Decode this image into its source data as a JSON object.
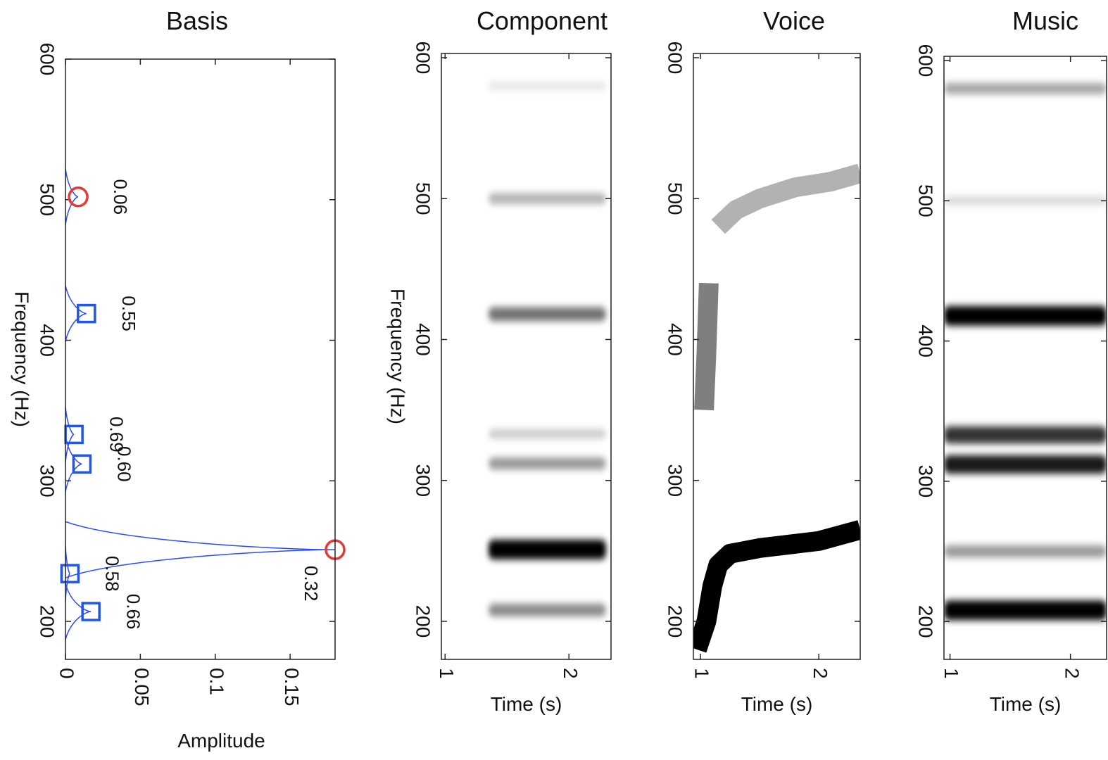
{
  "chart_data": [
    {
      "type": "scatter",
      "title": "Basis",
      "x_label": "Amplitude",
      "y_label": "Frequency (Hz)",
      "xlim": [
        0,
        0.18
      ],
      "ylim": [
        173,
        600
      ],
      "xticks": [
        0,
        0.05,
        0.1,
        0.15
      ],
      "yticks": [
        200,
        300,
        400,
        500,
        600
      ],
      "line_color": "#2a4bff",
      "series": [
        {
          "marker": "circle",
          "color": "#e53935",
          "x": [
            0.0085,
            0.18
          ],
          "y": [
            502,
            251
          ],
          "labels": [
            "0.06",
            "0.32"
          ]
        },
        {
          "marker": "square",
          "color": "#2255ee",
          "x": [
            0.014,
            0.0057,
            0.011,
            0.003,
            0.017
          ],
          "y": [
            419,
            333,
            312,
            234,
            207
          ],
          "labels": [
            "0.55",
            "0.69",
            "0.60",
            "0.58",
            "0.66"
          ]
        }
      ]
    },
    {
      "type": "spectrogram",
      "title": "Component",
      "x_label": "Time (s)",
      "y_label": "Frequency (Hz)",
      "xlim": [
        0.97,
        2.34
      ],
      "ylim": [
        173,
        603
      ],
      "xticks": [
        1,
        2
      ],
      "yticks": [
        200,
        300,
        400,
        500,
        600
      ],
      "bands": {
        "y": [
          580,
          500,
          418,
          333,
          312,
          251,
          208
        ],
        "intensity": [
          0.1,
          0.3,
          0.55,
          0.2,
          0.4,
          1,
          0.45
        ],
        "start": [
          1.35,
          1.35,
          1.35,
          1.35,
          1.35,
          1.35,
          1.35
        ],
        "end": [
          2.3,
          2.3,
          2.3,
          2.3,
          2.3,
          2.3,
          2.3
        ]
      }
    },
    {
      "type": "spectrogram",
      "title": "Voice",
      "x_label": "Time (s)",
      "xlim": [
        0.94,
        2.35
      ],
      "ylim": [
        173,
        603
      ],
      "xticks": [
        1,
        2
      ],
      "yticks": [
        200,
        300,
        400,
        500,
        600
      ],
      "tracks": [
        {
          "x": [
            0.97,
            1.05,
            1.1,
            1.15,
            1.25,
            1.5,
            1.8,
            2.0,
            2.35
          ],
          "y": [
            180,
            200,
            225,
            240,
            248,
            252,
            255,
            257,
            265
          ],
          "intensity": 1
        },
        {
          "x": [
            1.15,
            1.3,
            1.5,
            1.8,
            2.1,
            2.35
          ],
          "y": [
            480,
            492,
            500,
            508,
            512,
            518
          ],
          "intensity": 0.3
        },
        {
          "x": [
            1.03,
            1.05,
            1.07
          ],
          "y": [
            350,
            390,
            440
          ],
          "intensity": 0.5
        }
      ]
    },
    {
      "type": "spectrogram",
      "title": "Music",
      "x_label": "Time (s)",
      "xlim": [
        0.95,
        2.3
      ],
      "ylim": [
        173,
        603
      ],
      "xticks": [
        1,
        2
      ],
      "yticks": [
        200,
        300,
        400,
        500,
        600
      ],
      "bands": {
        "y": [
          580,
          500,
          418,
          333,
          312,
          250,
          208
        ],
        "intensity": [
          0.35,
          0.15,
          1,
          0.8,
          0.9,
          0.4,
          1
        ],
        "start": [
          0.95,
          0.95,
          0.95,
          0.95,
          0.95,
          0.95,
          0.95
        ],
        "end": [
          2.3,
          2.3,
          2.3,
          2.3,
          2.3,
          2.3,
          2.3
        ]
      }
    }
  ]
}
